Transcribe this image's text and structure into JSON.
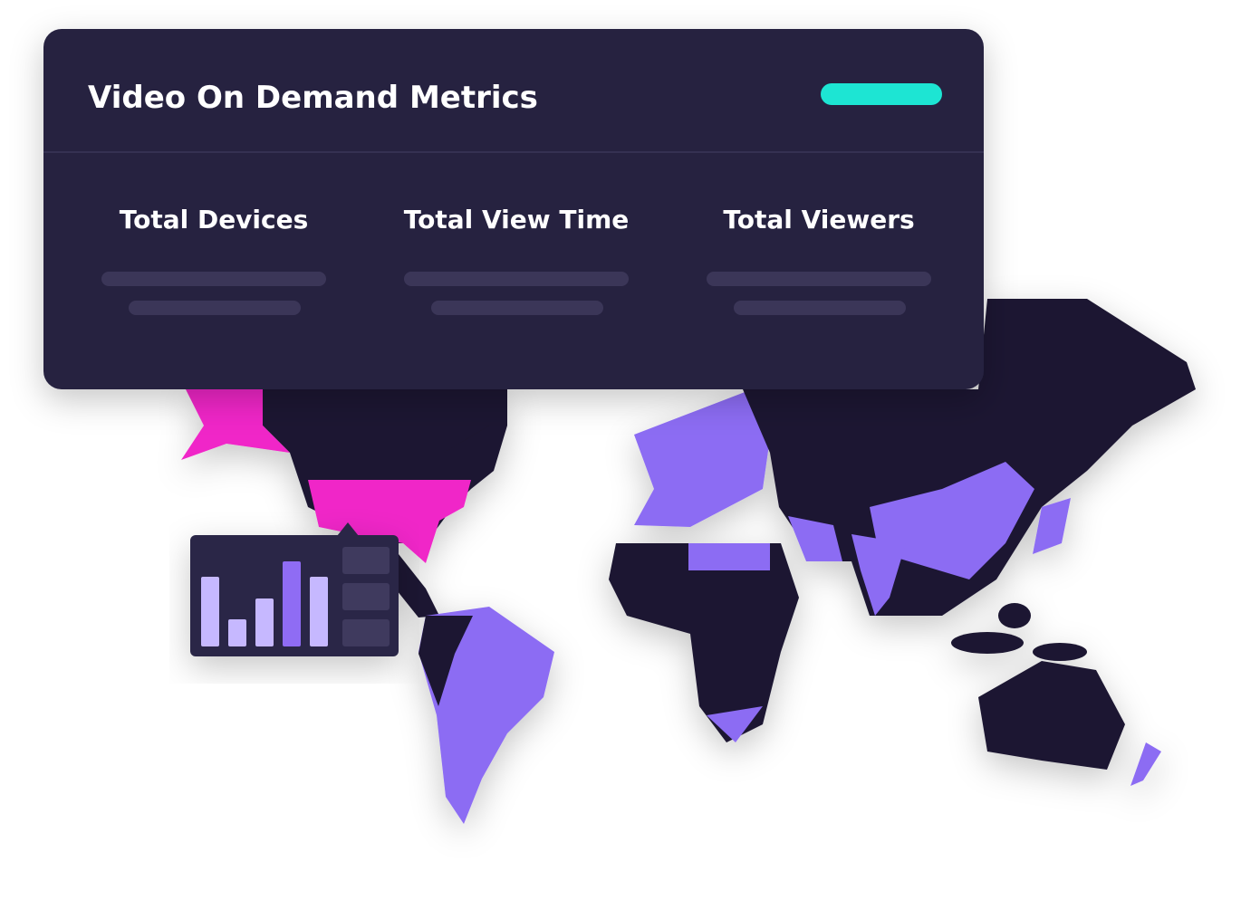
{
  "header": {
    "title": "Video On Demand Metrics"
  },
  "metrics": [
    {
      "label": "Total Devices"
    },
    {
      "label": "Total View Time"
    },
    {
      "label": "Total Viewers"
    }
  ]
}
